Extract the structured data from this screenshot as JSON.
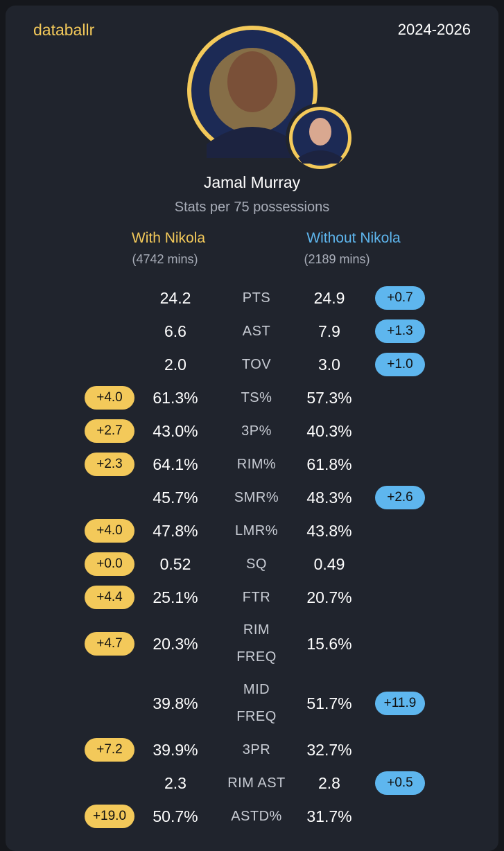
{
  "header": {
    "brand": "databallr",
    "period": "2024-2026",
    "player": "Jamal Murray",
    "subtitle": "Stats per 75 possessions"
  },
  "columns": {
    "with": {
      "label": "With Nikola",
      "mins": "(4742 mins)"
    },
    "without": {
      "label": "Without Nikola",
      "mins": "(2189 mins)"
    }
  },
  "rows": [
    {
      "stat": "PTS",
      "with": "24.2",
      "without": "24.9",
      "without_diff": "+0.7"
    },
    {
      "stat": "AST",
      "with": "6.6",
      "without": "7.9",
      "without_diff": "+1.3"
    },
    {
      "stat": "TOV",
      "with": "2.0",
      "without": "3.0",
      "without_diff": "+1.0"
    },
    {
      "stat": "TS%",
      "with": "61.3%",
      "without": "57.3%",
      "with_diff": "+4.0"
    },
    {
      "stat": "3P%",
      "with": "43.0%",
      "without": "40.3%",
      "with_diff": "+2.7"
    },
    {
      "stat": "RIM%",
      "with": "64.1%",
      "without": "61.8%",
      "with_diff": "+2.3"
    },
    {
      "stat": "SMR%",
      "with": "45.7%",
      "without": "48.3%",
      "without_diff": "+2.6"
    },
    {
      "stat": "LMR%",
      "with": "47.8%",
      "without": "43.8%",
      "with_diff": "+4.0"
    },
    {
      "stat": "SQ",
      "with": "0.52",
      "without": "0.49",
      "with_diff": "+0.0"
    },
    {
      "stat": "FTR",
      "with": "25.1%",
      "without": "20.7%",
      "with_diff": "+4.4"
    },
    {
      "stat": "RIM FREQ",
      "with": "20.3%",
      "without": "15.6%",
      "with_diff": "+4.7"
    },
    {
      "stat": "MID FREQ",
      "with": "39.8%",
      "without": "51.7%",
      "without_diff": "+11.9"
    },
    {
      "stat": "3PR",
      "with": "39.9%",
      "without": "32.7%",
      "with_diff": "+7.2"
    },
    {
      "stat": "RIM AST",
      "with": "2.3",
      "without": "2.8",
      "without_diff": "+0.5"
    },
    {
      "stat": "ASTD%",
      "with": "50.7%",
      "without": "31.7%",
      "with_diff": "+19.0"
    }
  ]
}
